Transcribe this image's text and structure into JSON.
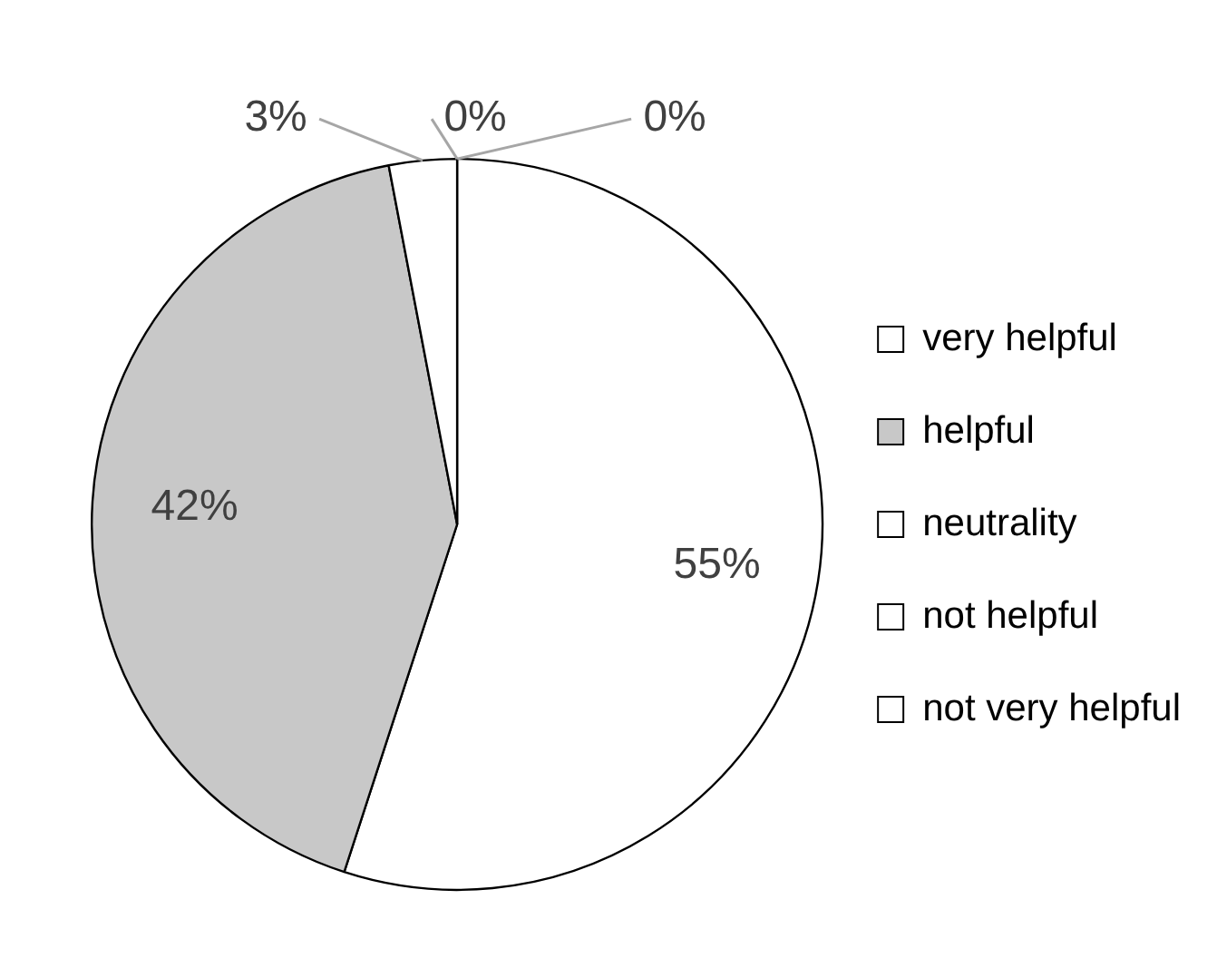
{
  "chart_data": {
    "type": "pie",
    "categories": [
      "very helpful",
      "helpful",
      "neutrality",
      "not helpful",
      "not very helpful"
    ],
    "values": [
      55,
      42,
      3,
      0,
      0
    ],
    "colors": [
      "#ffffff",
      "#c8c8c8",
      "#ffffff",
      "#ffffff",
      "#ffffff"
    ],
    "value_labels": [
      "55%",
      "42%",
      "3%",
      "0%",
      "0%"
    ],
    "legend": "right"
  }
}
